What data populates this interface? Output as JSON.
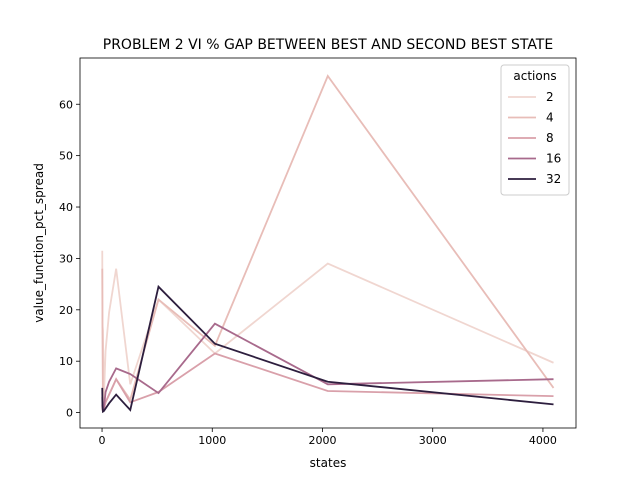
{
  "chart_data": {
    "type": "line",
    "title": "PROBLEM 2 VI % GAP BETWEEN BEST AND SECOND BEST STATE",
    "xlabel": "states",
    "ylabel": "value_function_pct_spread",
    "xlim": [
      -200,
      4300
    ],
    "ylim": [
      -3,
      69
    ],
    "xticks": [
      0,
      1000,
      2000,
      3000,
      4000
    ],
    "yticks": [
      0,
      10,
      20,
      30,
      40,
      50,
      60
    ],
    "legend": {
      "title": "actions",
      "placement": "top-right"
    },
    "series": [
      {
        "name": "2",
        "color": "#f0d6d0",
        "points": [
          [
            2,
            31.5
          ],
          [
            4,
            17.0
          ],
          [
            8,
            16.0
          ],
          [
            16,
            2.5
          ],
          [
            32,
            12.0
          ],
          [
            64,
            19.5
          ],
          [
            128,
            28.0
          ],
          [
            256,
            5.5
          ],
          [
            512,
            22.0
          ],
          [
            1024,
            11.5
          ],
          [
            2048,
            29.0
          ],
          [
            4096,
            9.7
          ]
        ]
      },
      {
        "name": "4",
        "color": "#e8bdb8",
        "points": [
          [
            2,
            28.0
          ],
          [
            4,
            15.0
          ],
          [
            8,
            2.0
          ],
          [
            16,
            1.0
          ],
          [
            32,
            2.0
          ],
          [
            64,
            3.5
          ],
          [
            128,
            6.5
          ],
          [
            256,
            2.5
          ],
          [
            512,
            22.0
          ],
          [
            1024,
            13.0
          ],
          [
            2048,
            65.5
          ],
          [
            4096,
            4.8
          ]
        ]
      },
      {
        "name": "8",
        "color": "#d9a0aa",
        "points": [
          [
            2,
            1.5
          ],
          [
            4,
            0.5
          ],
          [
            8,
            0.3
          ],
          [
            16,
            0.5
          ],
          [
            32,
            2.0
          ],
          [
            64,
            3.5
          ],
          [
            128,
            6.5
          ],
          [
            256,
            2.0
          ],
          [
            512,
            4.0
          ],
          [
            1024,
            11.5
          ],
          [
            2048,
            4.2
          ],
          [
            4096,
            3.2
          ]
        ]
      },
      {
        "name": "16",
        "color": "#a86a8c",
        "points": [
          [
            2,
            3.0
          ],
          [
            4,
            1.0
          ],
          [
            8,
            0.5
          ],
          [
            16,
            0.8
          ],
          [
            32,
            4.0
          ],
          [
            64,
            6.0
          ],
          [
            128,
            8.6
          ],
          [
            256,
            7.5
          ],
          [
            512,
            3.8
          ],
          [
            1024,
            17.3
          ],
          [
            2048,
            5.5
          ],
          [
            4096,
            6.5
          ]
        ]
      },
      {
        "name": "32",
        "color": "#2d1e3e",
        "points": [
          [
            2,
            4.8
          ],
          [
            4,
            1.5
          ],
          [
            8,
            0.2
          ],
          [
            16,
            0.3
          ],
          [
            32,
            0.8
          ],
          [
            64,
            1.8
          ],
          [
            128,
            3.5
          ],
          [
            256,
            0.5
          ],
          [
            512,
            24.5
          ],
          [
            1024,
            13.4
          ],
          [
            2048,
            6.0
          ],
          [
            4096,
            1.6
          ]
        ]
      }
    ]
  }
}
